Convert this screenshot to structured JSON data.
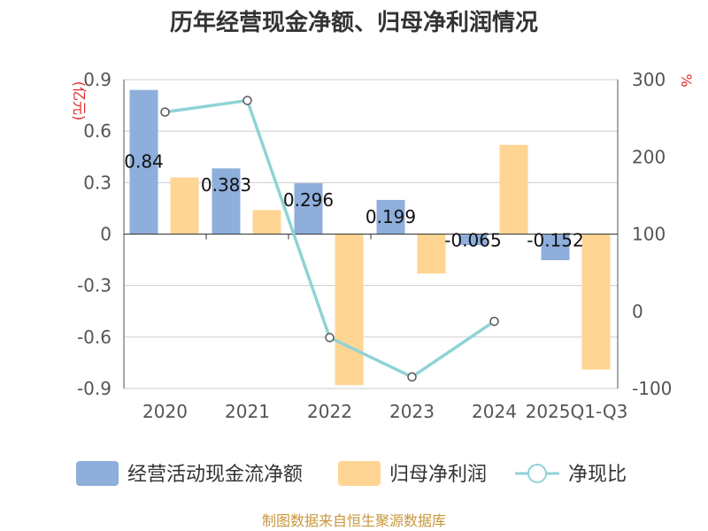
{
  "title": "历年经营现金净额、归母净利润情况",
  "source": "制图数据来自恒生聚源数据库",
  "left_unit": "(亿元)",
  "right_unit": "%",
  "colors": {
    "cash": "#8eaedc",
    "profit": "#fed592",
    "ratio": "#8fd3d6"
  },
  "chart_data": {
    "type": "bar",
    "categories": [
      "2020",
      "2021",
      "2022",
      "2023",
      "2024",
      "2025Q1-Q3"
    ],
    "series": [
      {
        "name": "经营活动现金流净额",
        "axis": "left",
        "kind": "bar",
        "values": [
          0.84,
          0.383,
          0.296,
          0.199,
          -0.065,
          -0.152
        ],
        "labels": [
          "0.84",
          "0.383",
          "0.296",
          "0.199",
          "-0.065",
          "-0.152"
        ]
      },
      {
        "name": "归母净利润",
        "axis": "left",
        "kind": "bar",
        "values": [
          0.33,
          0.14,
          -0.88,
          -0.23,
          0.52,
          -0.79
        ]
      },
      {
        "name": "净现比",
        "axis": "right",
        "kind": "line",
        "values": [
          258,
          273,
          -34,
          -85,
          -13,
          null
        ]
      }
    ],
    "y_left": {
      "ticks": [
        "0.9",
        "0.6",
        "0.3",
        "0",
        "-0.3",
        "-0.6",
        "-0.9"
      ],
      "ylim": [
        -0.9,
        0.9
      ]
    },
    "y_right": {
      "ticks": [
        "300",
        "200",
        "100",
        "0",
        "-100"
      ],
      "ylim": [
        -100,
        300
      ]
    }
  }
}
